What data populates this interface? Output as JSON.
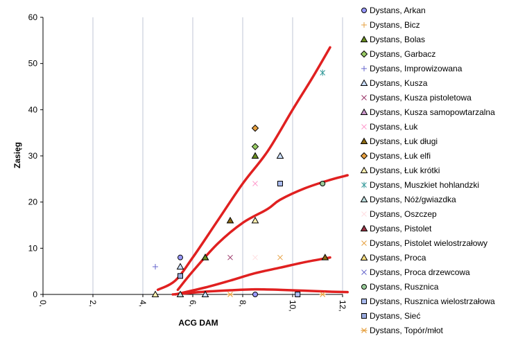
{
  "chart_data": {
    "type": "scatter",
    "title": "",
    "xlabel": "ACG DAM",
    "ylabel": "Zasięg",
    "xlim": [
      0,
      12
    ],
    "ylim": [
      0,
      60
    ],
    "x_ticks": [
      "0,",
      "2,",
      "4,",
      "6,",
      "8,",
      "10,",
      "12,"
    ],
    "y_ticks": [
      "0",
      "10",
      "20",
      "30",
      "40",
      "50",
      "60"
    ],
    "grid": "vertical",
    "legend_position": "right",
    "series": [
      {
        "name": "Dystans, Arkan",
        "marker": "circle",
        "fill": "#9999FF",
        "stroke": "#000000",
        "points": [
          [
            5.5,
            8
          ]
        ]
      },
      {
        "name": "Dystans, Bicz",
        "marker": "plus",
        "fill": "none",
        "stroke": "#E6A040",
        "points": []
      },
      {
        "name": "Dystans, Bolas",
        "marker": "triangle",
        "fill": "#6B8E23",
        "stroke": "#000000",
        "points": [
          [
            8.5,
            30
          ]
        ]
      },
      {
        "name": "Dystans, Garbacz",
        "marker": "diamond",
        "fill": "#99CC66",
        "stroke": "#000000",
        "points": [
          [
            8.5,
            32
          ]
        ]
      },
      {
        "name": "Dystans, Improwizowana",
        "marker": "plus",
        "fill": "none",
        "stroke": "#6666CC",
        "points": [
          [
            4.5,
            6
          ]
        ]
      },
      {
        "name": "Dystans, Kusza",
        "marker": "triangle",
        "fill": "#CCE0FF",
        "stroke": "#000000",
        "points": [
          [
            9.5,
            30
          ],
          [
            5.5,
            6
          ]
        ]
      },
      {
        "name": "Dystans, Kusza pistoletowa",
        "marker": "x",
        "fill": "none",
        "stroke": "#993366",
        "points": [
          [
            7.5,
            8
          ]
        ]
      },
      {
        "name": "Dystans, Kusza samopowtarzalna",
        "marker": "triangle",
        "fill": "#CC99CC",
        "stroke": "#000000",
        "points": []
      },
      {
        "name": "Dystans, Łuk",
        "marker": "x",
        "fill": "none",
        "stroke": "#FF99CC",
        "points": [
          [
            8.5,
            24
          ]
        ]
      },
      {
        "name": "Dystans, Łuk długi",
        "marker": "triangle",
        "fill": "#8B6914",
        "stroke": "#000000",
        "points": [
          [
            7.5,
            16
          ],
          [
            11.3,
            8
          ]
        ]
      },
      {
        "name": "Dystans, Łuk elfi",
        "marker": "diamond",
        "fill": "#E6A040",
        "stroke": "#000000",
        "points": [
          [
            8.5,
            36
          ]
        ]
      },
      {
        "name": "Dystans, Łuk krótki",
        "marker": "triangle",
        "fill": "#FFF0B0",
        "stroke": "#000000",
        "points": [
          [
            8.5,
            16
          ]
        ]
      },
      {
        "name": "Dystans, Muszkiet hohlandzki",
        "marker": "star",
        "fill": "none",
        "stroke": "#339999",
        "points": [
          [
            11.2,
            48
          ]
        ]
      },
      {
        "name": "Dystans, Nóż/gwiazdka",
        "marker": "triangle",
        "fill": "#BBDDDD",
        "stroke": "#000000",
        "points": [
          [
            5.5,
            0
          ]
        ]
      },
      {
        "name": "Dystans, Oszczep",
        "marker": "x",
        "fill": "none",
        "stroke": "#FFDDE0",
        "points": [
          [
            8.5,
            8
          ]
        ]
      },
      {
        "name": "Dystans, Pistolet",
        "marker": "triangle",
        "fill": "#993344",
        "stroke": "#000000",
        "points": []
      },
      {
        "name": "Dystans, Pistolet wielostrzałowy",
        "marker": "x",
        "fill": "none",
        "stroke": "#E6A040",
        "points": [
          [
            9.5,
            8
          ]
        ]
      },
      {
        "name": "Dystans, Proca",
        "marker": "triangle",
        "fill": "#FFE080",
        "stroke": "#000000",
        "points": [
          [
            6.5,
            8
          ]
        ]
      },
      {
        "name": "Dystans, Proca drzewcowa",
        "marker": "x",
        "fill": "none",
        "stroke": "#6666CC",
        "points": []
      },
      {
        "name": "Dystans, Rusznica",
        "marker": "circle",
        "fill": "#99CC99",
        "stroke": "#000000",
        "points": [
          [
            11.2,
            24
          ]
        ]
      },
      {
        "name": "Dystans, Rusznica wielostrzałowa",
        "marker": "square",
        "fill": "#AABBEE",
        "stroke": "#000000",
        "points": [
          [
            9.5,
            24
          ],
          [
            10.2,
            0
          ]
        ]
      },
      {
        "name": "Dystans, Sieć",
        "marker": "square",
        "fill": "#99AADD",
        "stroke": "#000000",
        "points": [
          [
            5.5,
            4
          ]
        ]
      },
      {
        "name": "Dystans, Topór/młot",
        "marker": "asterisk",
        "fill": "none",
        "stroke": "#E6A040",
        "points": [
          [
            7.5,
            0
          ],
          [
            11.2,
            0
          ]
        ]
      }
    ],
    "extra_points": [
      {
        "marker": "triangle",
        "fill": "#FFF0B0",
        "stroke": "#000000",
        "x": 4.5,
        "y": 0
      },
      {
        "marker": "triangle",
        "fill": "#CCE0FF",
        "stroke": "#000000",
        "x": 6.5,
        "y": 0
      },
      {
        "marker": "circle",
        "fill": "#9999FF",
        "stroke": "#000000",
        "x": 8.5,
        "y": 0
      },
      {
        "marker": "triangle",
        "fill": "#6B8E23",
        "stroke": "#000000",
        "x": 6.5,
        "y": 8
      }
    ],
    "annotations": {
      "type": "hand-drawn-trend-curves",
      "color": "#E02020",
      "curves": [
        [
          [
            4.6,
            1
          ],
          [
            5.3,
            3
          ],
          [
            6.0,
            8
          ],
          [
            7.0,
            16
          ],
          [
            8.0,
            24
          ],
          [
            9.0,
            31
          ],
          [
            10.0,
            40
          ],
          [
            10.8,
            47
          ],
          [
            11.5,
            53.5
          ]
        ],
        [
          [
            5.4,
            1
          ],
          [
            6.0,
            5
          ],
          [
            7.0,
            11
          ],
          [
            8.0,
            15.5
          ],
          [
            9.0,
            18.5
          ],
          [
            9.5,
            20.5
          ],
          [
            10.5,
            23
          ],
          [
            11.5,
            24.8
          ],
          [
            12.2,
            25.8
          ]
        ],
        [
          [
            5.3,
            0
          ],
          [
            6.5,
            1.5
          ],
          [
            7.5,
            3
          ],
          [
            8.5,
            4.6
          ],
          [
            9.5,
            5.8
          ],
          [
            10.5,
            7
          ],
          [
            11.5,
            8
          ]
        ],
        [
          [
            5.2,
            0
          ],
          [
            6.5,
            0.6
          ],
          [
            7.5,
            0.9
          ],
          [
            8.5,
            1.1
          ],
          [
            9.5,
            1.0
          ],
          [
            10.5,
            0.8
          ],
          [
            11.5,
            0.6
          ],
          [
            12.2,
            0.5
          ]
        ]
      ]
    }
  }
}
